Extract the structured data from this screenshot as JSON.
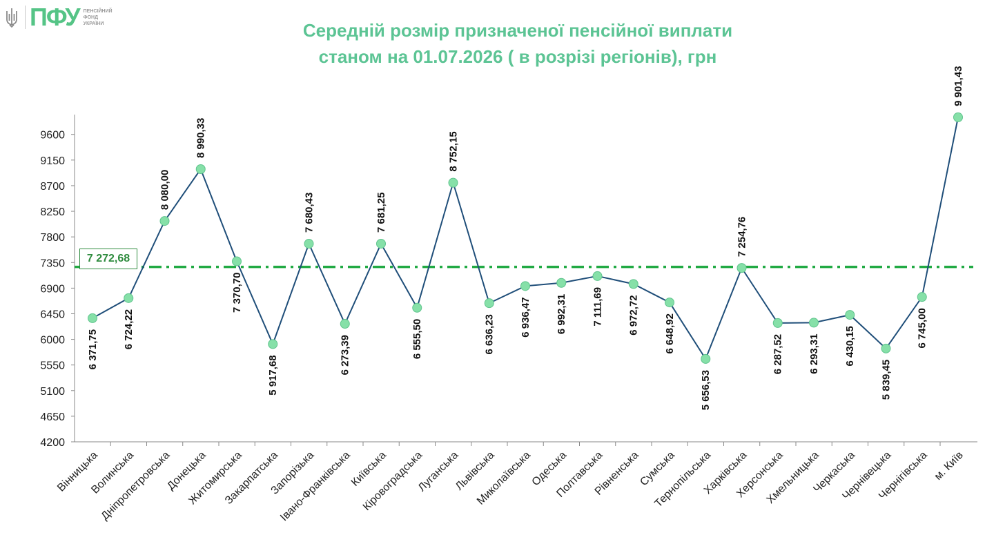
{
  "logo": {
    "abbr": "ПФУ",
    "line1": "ПЕНСІЙНИЙ",
    "line2": "ФОНД",
    "line3": "УКРАЇНИ",
    "icon": "trident-icon"
  },
  "colors": {
    "title": "#5cc494",
    "line": "#1f4e79",
    "marker": "#86e0a8",
    "average": "#22aa44"
  },
  "chart_data": {
    "type": "line",
    "title_line1": "Середній розмір призначеної пенсійної виплати",
    "title_line2": "станом на 01.07.2026 ( в розрізі регіонів), грн",
    "xlabel": "",
    "ylabel": "",
    "ylim": [
      4200,
      9900
    ],
    "yticks": [
      4200,
      4650,
      5100,
      5550,
      6000,
      6450,
      6900,
      7350,
      7800,
      8250,
      8700,
      9150,
      9600
    ],
    "grid": false,
    "categories": [
      "Вінницька",
      "Волинська",
      "Дніпропетровська",
      "Донецька",
      "Житомирська",
      "Закарпатська",
      "Запорізька",
      "Івано-Франківська",
      "Київська",
      "Кіровоградська",
      "Луганська",
      "Львівська",
      "Миколаївська",
      "Одеська",
      "Полтавська",
      "Рівненська",
      "Сумська",
      "Тернопільська",
      "Харківська",
      "Херсонська",
      "Хмельницька",
      "Черкаська",
      "Чернівецька",
      "Чернігівська",
      "м. Київ"
    ],
    "values": [
      6371.75,
      6724.22,
      8080.0,
      8990.33,
      7370.7,
      5917.68,
      7680.43,
      6273.39,
      7681.25,
      6555.5,
      8752.15,
      6636.23,
      6936.47,
      6992.31,
      7111.69,
      6972.72,
      6648.92,
      5656.53,
      7254.76,
      6287.52,
      6293.31,
      6430.15,
      5839.45,
      6745.0,
      9901.43
    ],
    "value_labels": [
      "6 371,75",
      "6 724,22",
      "8 080,00",
      "8 990,33",
      "7 370,70",
      "5 917,68",
      "7 680,43",
      "6 273,39",
      "7 681,25",
      "6 555,50",
      "8 752,15",
      "6 636,23",
      "6 936,47",
      "6 992,31",
      "7 111,69",
      "6 972,72",
      "6 648,92",
      "5 656,53",
      "7 254,76",
      "6 287,52",
      "6 293,31",
      "6 430,15",
      "5 839,45",
      "6 745,00",
      "9 901,43"
    ],
    "label_position": [
      "below",
      "below",
      "above",
      "above",
      "below",
      "below",
      "above",
      "below",
      "above",
      "below",
      "above",
      "below",
      "below",
      "below",
      "below",
      "below",
      "below",
      "below",
      "above",
      "below",
      "below",
      "below",
      "below",
      "below",
      "above"
    ],
    "average": {
      "value": 7272.68,
      "label": "7 272,68"
    }
  }
}
